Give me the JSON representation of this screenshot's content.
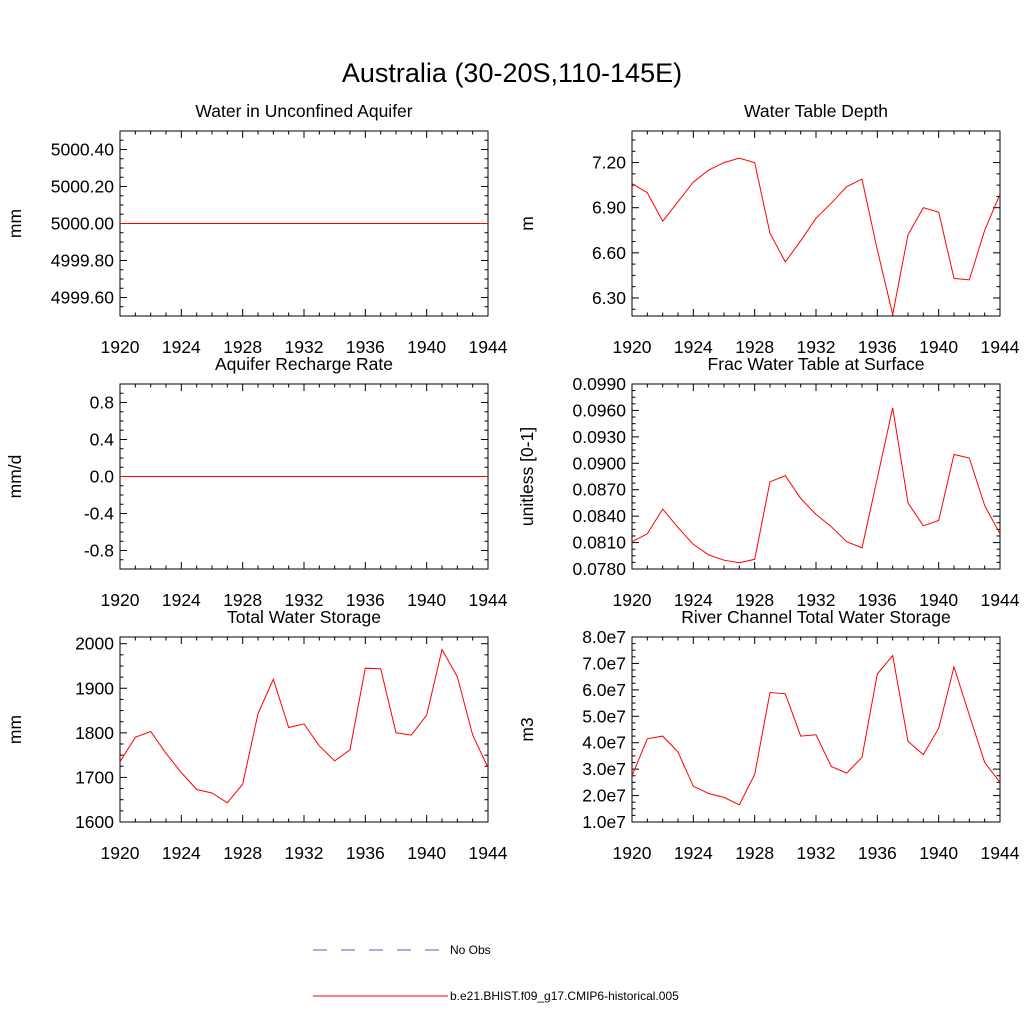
{
  "figure": {
    "title": "Australia (30-20S,110-145E)",
    "series_color": "#ff0000",
    "obs_color": "#4a5fc1"
  },
  "legend": {
    "obs_label": "No Obs",
    "model_label": "b.e21.BHIST.f09_g17.CMIP6-historical.005"
  },
  "chart_data": [
    {
      "type": "line",
      "title": "Water in Unconfined Aquifer",
      "ylabel": "mm",
      "xlim": [
        1920,
        1944
      ],
      "ylim": [
        4999.5,
        5000.5
      ],
      "xticks": [
        1920,
        1924,
        1928,
        1932,
        1936,
        1940,
        1944
      ],
      "yticks": [
        4999.6,
        4999.8,
        5000.0,
        5000.2,
        5000.4
      ],
      "yticklabels": [
        "4999.60",
        "4999.80",
        "5000.00",
        "5000.20",
        "5000.40"
      ],
      "yminor": 0.05,
      "series": [
        {
          "name": "b.e21.BHIST.f09_g17.CMIP6-historical.005",
          "x": [
            1920,
            1921,
            1922,
            1923,
            1924,
            1925,
            1926,
            1927,
            1928,
            1929,
            1930,
            1931,
            1932,
            1933,
            1934,
            1935,
            1936,
            1937,
            1938,
            1939,
            1940,
            1941,
            1942,
            1943,
            1944
          ],
          "values": [
            5000,
            5000,
            5000,
            5000,
            5000,
            5000,
            5000,
            5000,
            5000,
            5000,
            5000,
            5000,
            5000,
            5000,
            5000,
            5000,
            5000,
            5000,
            5000,
            5000,
            5000,
            5000,
            5000,
            5000,
            5000
          ]
        }
      ]
    },
    {
      "type": "line",
      "title": "Water Table Depth",
      "ylabel": "m",
      "xlim": [
        1920,
        1944
      ],
      "ylim": [
        6.18,
        7.41
      ],
      "xticks": [
        1920,
        1924,
        1928,
        1932,
        1936,
        1940,
        1944
      ],
      "yticks": [
        6.3,
        6.6,
        6.9,
        7.2
      ],
      "yticklabels": [
        "6.30",
        "6.60",
        "6.90",
        "7.20"
      ],
      "yminor": 0.075,
      "series": [
        {
          "name": "b.e21.BHIST.f09_g17.CMIP6-historical.005",
          "x": [
            1920,
            1921,
            1922,
            1923,
            1924,
            1925,
            1926,
            1927,
            1928,
            1929,
            1930,
            1931,
            1932,
            1933,
            1934,
            1935,
            1936,
            1937,
            1938,
            1939,
            1940,
            1941,
            1942,
            1943,
            1944
          ],
          "values": [
            7.06,
            7.0,
            6.81,
            6.94,
            7.07,
            7.15,
            7.2,
            7.23,
            7.2,
            6.73,
            6.54,
            6.68,
            6.83,
            6.93,
            7.04,
            7.09,
            6.62,
            6.19,
            6.72,
            6.9,
            6.87,
            6.43,
            6.42,
            6.75,
            6.99
          ]
        }
      ]
    },
    {
      "type": "line",
      "title": "Aquifer Recharge Rate",
      "ylabel": "mm/d",
      "xlim": [
        1920,
        1944
      ],
      "ylim": [
        -1.0,
        1.0
      ],
      "xticks": [
        1920,
        1924,
        1928,
        1932,
        1936,
        1940,
        1944
      ],
      "yticks": [
        -0.8,
        -0.4,
        0.0,
        0.4,
        0.8
      ],
      "yticklabels": [
        "-0.8",
        "-0.4",
        "0.0",
        "0.4",
        "0.8"
      ],
      "yminor": 0.1,
      "series": [
        {
          "name": "b.e21.BHIST.f09_g17.CMIP6-historical.005",
          "x": [
            1920,
            1921,
            1922,
            1923,
            1924,
            1925,
            1926,
            1927,
            1928,
            1929,
            1930,
            1931,
            1932,
            1933,
            1934,
            1935,
            1936,
            1937,
            1938,
            1939,
            1940,
            1941,
            1942,
            1943,
            1944
          ],
          "values": [
            0,
            0,
            0,
            0,
            0,
            0,
            0,
            0,
            0,
            0,
            0,
            0,
            0,
            0,
            0,
            0,
            0,
            0,
            0,
            0,
            0,
            0,
            0,
            0,
            0
          ]
        }
      ]
    },
    {
      "type": "line",
      "title": "Frac Water Table at Surface",
      "ylabel": "unitless [0-1]",
      "xlim": [
        1920,
        1944
      ],
      "ylim": [
        0.078,
        0.099
      ],
      "xticks": [
        1920,
        1924,
        1928,
        1932,
        1936,
        1940,
        1944
      ],
      "yticks": [
        0.078,
        0.081,
        0.084,
        0.087,
        0.09,
        0.093,
        0.096,
        0.099
      ],
      "yticklabels": [
        "0.0780",
        "0.0810",
        "0.0840",
        "0.0870",
        "0.0900",
        "0.0930",
        "0.0960",
        "0.0990"
      ],
      "yminor": 0.00075,
      "series": [
        {
          "name": "b.e21.BHIST.f09_g17.CMIP6-historical.005",
          "x": [
            1920,
            1921,
            1922,
            1923,
            1924,
            1925,
            1926,
            1927,
            1928,
            1929,
            1930,
            1931,
            1932,
            1933,
            1934,
            1935,
            1936,
            1937,
            1938,
            1939,
            1940,
            1941,
            1942,
            1943,
            1944
          ],
          "values": [
            0.0811,
            0.082,
            0.0848,
            0.0827,
            0.0808,
            0.0796,
            0.079,
            0.0787,
            0.0791,
            0.0879,
            0.0886,
            0.086,
            0.0842,
            0.0828,
            0.0811,
            0.0804,
            0.0883,
            0.0963,
            0.0855,
            0.0829,
            0.0835,
            0.091,
            0.0906,
            0.0852,
            0.082
          ]
        }
      ]
    },
    {
      "type": "line",
      "title": "Total Water Storage",
      "ylabel": "mm",
      "xlim": [
        1920,
        1944
      ],
      "ylim": [
        1600,
        2015
      ],
      "xticks": [
        1920,
        1924,
        1928,
        1932,
        1936,
        1940,
        1944
      ],
      "yticks": [
        1600,
        1700,
        1800,
        1900,
        2000
      ],
      "yticklabels": [
        "1600",
        "1700",
        "1800",
        "1900",
        "2000"
      ],
      "yminor": 25,
      "series": [
        {
          "name": "b.e21.BHIST.f09_g17.CMIP6-historical.005",
          "x": [
            1920,
            1921,
            1922,
            1923,
            1924,
            1925,
            1926,
            1927,
            1928,
            1929,
            1930,
            1931,
            1932,
            1933,
            1934,
            1935,
            1936,
            1937,
            1938,
            1939,
            1940,
            1941,
            1942,
            1943,
            1944
          ],
          "values": [
            1735,
            1790,
            1803,
            1754,
            1711,
            1673,
            1665,
            1643,
            1685,
            1843,
            1920,
            1812,
            1820,
            1771,
            1737,
            1762,
            1945,
            1944,
            1800,
            1795,
            1840,
            1987,
            1926,
            1795,
            1722
          ]
        }
      ]
    },
    {
      "type": "line",
      "title": "River Channel Total Water Storage",
      "ylabel": "m3",
      "xlim": [
        1920,
        1944
      ],
      "ylim": [
        10000000.0,
        80000000.0
      ],
      "xticks": [
        1920,
        1924,
        1928,
        1932,
        1936,
        1940,
        1944
      ],
      "yticks": [
        10000000.0,
        20000000.0,
        30000000.0,
        40000000.0,
        50000000.0,
        60000000.0,
        70000000.0,
        80000000.0
      ],
      "yticklabels": [
        "1.0e7",
        "2.0e7",
        "3.0e7",
        "4.0e7",
        "5.0e7",
        "6.0e7",
        "7.0e7",
        "8.0e7"
      ],
      "yminor": 2500000.0,
      "series": [
        {
          "name": "b.e21.BHIST.f09_g17.CMIP6-historical.005",
          "x": [
            1920,
            1921,
            1922,
            1923,
            1924,
            1925,
            1926,
            1927,
            1928,
            1929,
            1930,
            1931,
            1932,
            1933,
            1934,
            1935,
            1936,
            1937,
            1938,
            1939,
            1940,
            1941,
            1942,
            1943,
            1944
          ],
          "values": [
            27500000.0,
            41500000.0,
            42500000.0,
            36500000.0,
            23500000.0,
            20800000.0,
            19300000.0,
            16500000.0,
            28000000.0,
            59000000.0,
            58500000.0,
            42500000.0,
            43000000.0,
            31000000.0,
            28500000.0,
            34500000.0,
            66000000.0,
            73000000.0,
            40500000.0,
            35500000.0,
            45500000.0,
            68700000.0,
            50500000.0,
            32500000.0,
            25000000.0
          ]
        }
      ]
    }
  ]
}
